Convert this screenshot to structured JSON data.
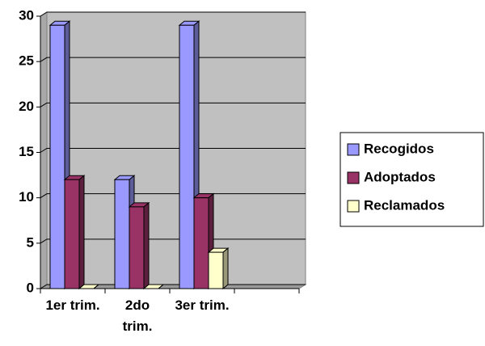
{
  "chart_data": {
    "type": "bar3d",
    "categories": [
      "1er trim.",
      "2do trim.",
      "3er trim.",
      null
    ],
    "series": [
      {
        "name": "Recogidos",
        "color": "#9999ff",
        "values": [
          29,
          12,
          29,
          null
        ]
      },
      {
        "name": "Adoptados",
        "color": "#993366",
        "values": [
          12,
          9,
          10,
          null
        ]
      },
      {
        "name": "Reclamados",
        "color": "#ffffcc",
        "values": [
          0,
          0,
          4,
          null
        ]
      }
    ],
    "ylim": [
      0,
      30
    ],
    "yticks": [
      0,
      5,
      10,
      15,
      20,
      25,
      30
    ],
    "grid": true,
    "legend": "right"
  }
}
